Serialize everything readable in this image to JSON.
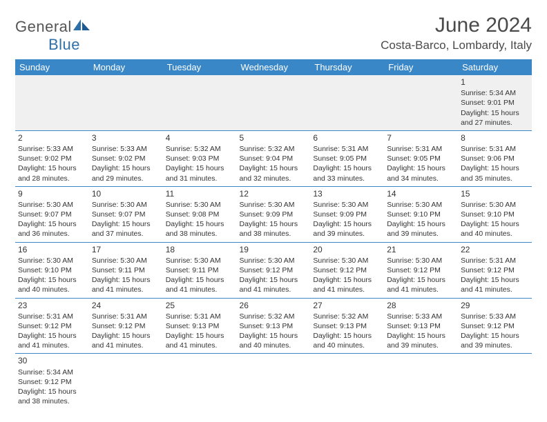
{
  "logo": {
    "general": "General",
    "blue": "Blue"
  },
  "title": "June 2024",
  "location": "Costa-Barco, Lombardy, Italy",
  "colors": {
    "header_bg": "#3a87c8",
    "header_fg": "#ffffff",
    "border": "#3a87c8",
    "empty_bg": "#f0f0f0",
    "text": "#333333",
    "logo_gray": "#555555",
    "logo_blue": "#2f6fa8"
  },
  "weekdays": [
    "Sunday",
    "Monday",
    "Tuesday",
    "Wednesday",
    "Thursday",
    "Friday",
    "Saturday"
  ],
  "weeks": [
    [
      null,
      null,
      null,
      null,
      null,
      null,
      {
        "n": "1",
        "sr": "Sunrise: 5:34 AM",
        "ss": "Sunset: 9:01 PM",
        "d1": "Daylight: 15 hours",
        "d2": "and 27 minutes."
      }
    ],
    [
      {
        "n": "2",
        "sr": "Sunrise: 5:33 AM",
        "ss": "Sunset: 9:02 PM",
        "d1": "Daylight: 15 hours",
        "d2": "and 28 minutes."
      },
      {
        "n": "3",
        "sr": "Sunrise: 5:33 AM",
        "ss": "Sunset: 9:02 PM",
        "d1": "Daylight: 15 hours",
        "d2": "and 29 minutes."
      },
      {
        "n": "4",
        "sr": "Sunrise: 5:32 AM",
        "ss": "Sunset: 9:03 PM",
        "d1": "Daylight: 15 hours",
        "d2": "and 31 minutes."
      },
      {
        "n": "5",
        "sr": "Sunrise: 5:32 AM",
        "ss": "Sunset: 9:04 PM",
        "d1": "Daylight: 15 hours",
        "d2": "and 32 minutes."
      },
      {
        "n": "6",
        "sr": "Sunrise: 5:31 AM",
        "ss": "Sunset: 9:05 PM",
        "d1": "Daylight: 15 hours",
        "d2": "and 33 minutes."
      },
      {
        "n": "7",
        "sr": "Sunrise: 5:31 AM",
        "ss": "Sunset: 9:05 PM",
        "d1": "Daylight: 15 hours",
        "d2": "and 34 minutes."
      },
      {
        "n": "8",
        "sr": "Sunrise: 5:31 AM",
        "ss": "Sunset: 9:06 PM",
        "d1": "Daylight: 15 hours",
        "d2": "and 35 minutes."
      }
    ],
    [
      {
        "n": "9",
        "sr": "Sunrise: 5:30 AM",
        "ss": "Sunset: 9:07 PM",
        "d1": "Daylight: 15 hours",
        "d2": "and 36 minutes."
      },
      {
        "n": "10",
        "sr": "Sunrise: 5:30 AM",
        "ss": "Sunset: 9:07 PM",
        "d1": "Daylight: 15 hours",
        "d2": "and 37 minutes."
      },
      {
        "n": "11",
        "sr": "Sunrise: 5:30 AM",
        "ss": "Sunset: 9:08 PM",
        "d1": "Daylight: 15 hours",
        "d2": "and 38 minutes."
      },
      {
        "n": "12",
        "sr": "Sunrise: 5:30 AM",
        "ss": "Sunset: 9:09 PM",
        "d1": "Daylight: 15 hours",
        "d2": "and 38 minutes."
      },
      {
        "n": "13",
        "sr": "Sunrise: 5:30 AM",
        "ss": "Sunset: 9:09 PM",
        "d1": "Daylight: 15 hours",
        "d2": "and 39 minutes."
      },
      {
        "n": "14",
        "sr": "Sunrise: 5:30 AM",
        "ss": "Sunset: 9:10 PM",
        "d1": "Daylight: 15 hours",
        "d2": "and 39 minutes."
      },
      {
        "n": "15",
        "sr": "Sunrise: 5:30 AM",
        "ss": "Sunset: 9:10 PM",
        "d1": "Daylight: 15 hours",
        "d2": "and 40 minutes."
      }
    ],
    [
      {
        "n": "16",
        "sr": "Sunrise: 5:30 AM",
        "ss": "Sunset: 9:10 PM",
        "d1": "Daylight: 15 hours",
        "d2": "and 40 minutes."
      },
      {
        "n": "17",
        "sr": "Sunrise: 5:30 AM",
        "ss": "Sunset: 9:11 PM",
        "d1": "Daylight: 15 hours",
        "d2": "and 41 minutes."
      },
      {
        "n": "18",
        "sr": "Sunrise: 5:30 AM",
        "ss": "Sunset: 9:11 PM",
        "d1": "Daylight: 15 hours",
        "d2": "and 41 minutes."
      },
      {
        "n": "19",
        "sr": "Sunrise: 5:30 AM",
        "ss": "Sunset: 9:12 PM",
        "d1": "Daylight: 15 hours",
        "d2": "and 41 minutes."
      },
      {
        "n": "20",
        "sr": "Sunrise: 5:30 AM",
        "ss": "Sunset: 9:12 PM",
        "d1": "Daylight: 15 hours",
        "d2": "and 41 minutes."
      },
      {
        "n": "21",
        "sr": "Sunrise: 5:30 AM",
        "ss": "Sunset: 9:12 PM",
        "d1": "Daylight: 15 hours",
        "d2": "and 41 minutes."
      },
      {
        "n": "22",
        "sr": "Sunrise: 5:31 AM",
        "ss": "Sunset: 9:12 PM",
        "d1": "Daylight: 15 hours",
        "d2": "and 41 minutes."
      }
    ],
    [
      {
        "n": "23",
        "sr": "Sunrise: 5:31 AM",
        "ss": "Sunset: 9:12 PM",
        "d1": "Daylight: 15 hours",
        "d2": "and 41 minutes."
      },
      {
        "n": "24",
        "sr": "Sunrise: 5:31 AM",
        "ss": "Sunset: 9:12 PM",
        "d1": "Daylight: 15 hours",
        "d2": "and 41 minutes."
      },
      {
        "n": "25",
        "sr": "Sunrise: 5:31 AM",
        "ss": "Sunset: 9:13 PM",
        "d1": "Daylight: 15 hours",
        "d2": "and 41 minutes."
      },
      {
        "n": "26",
        "sr": "Sunrise: 5:32 AM",
        "ss": "Sunset: 9:13 PM",
        "d1": "Daylight: 15 hours",
        "d2": "and 40 minutes."
      },
      {
        "n": "27",
        "sr": "Sunrise: 5:32 AM",
        "ss": "Sunset: 9:13 PM",
        "d1": "Daylight: 15 hours",
        "d2": "and 40 minutes."
      },
      {
        "n": "28",
        "sr": "Sunrise: 5:33 AM",
        "ss": "Sunset: 9:13 PM",
        "d1": "Daylight: 15 hours",
        "d2": "and 39 minutes."
      },
      {
        "n": "29",
        "sr": "Sunrise: 5:33 AM",
        "ss": "Sunset: 9:12 PM",
        "d1": "Daylight: 15 hours",
        "d2": "and 39 minutes."
      }
    ],
    [
      {
        "n": "30",
        "sr": "Sunrise: 5:34 AM",
        "ss": "Sunset: 9:12 PM",
        "d1": "Daylight: 15 hours",
        "d2": "and 38 minutes."
      },
      null,
      null,
      null,
      null,
      null,
      null
    ]
  ]
}
